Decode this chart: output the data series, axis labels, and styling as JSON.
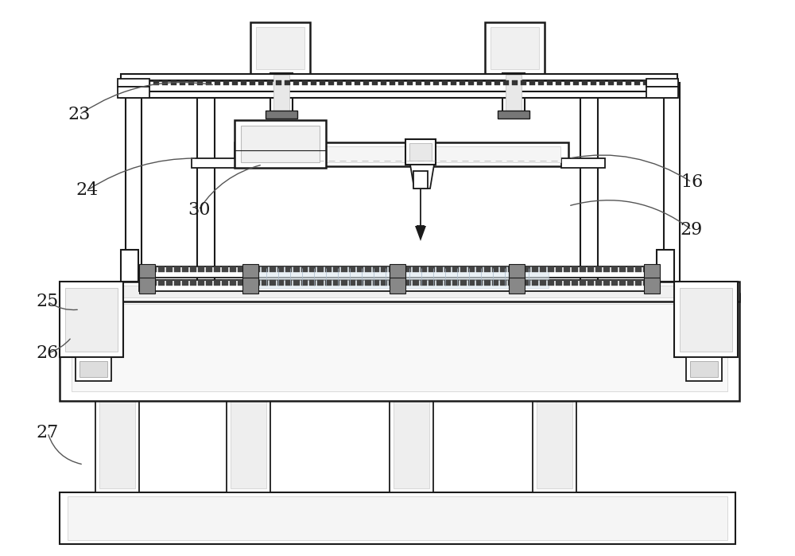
{
  "bg": "#ffffff",
  "lc": "#1a1a1a",
  "gray1": "#dddddd",
  "gray2": "#aaaaaa",
  "gray3": "#888888",
  "gray4": "#666666",
  "gray5": "#444444",
  "gray6": "#222222",
  "lw": 1.3,
  "fontsize": 16
}
